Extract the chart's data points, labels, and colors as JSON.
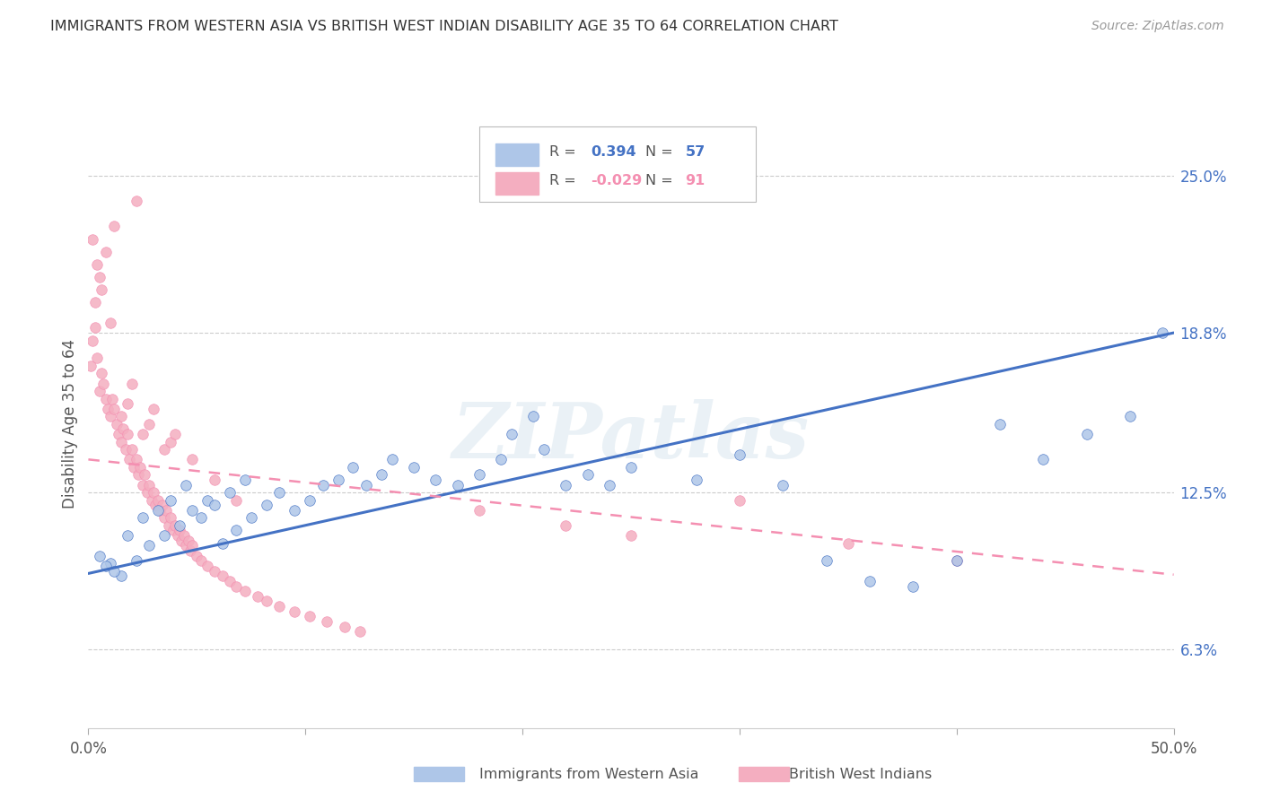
{
  "title": "IMMIGRANTS FROM WESTERN ASIA VS BRITISH WEST INDIAN DISABILITY AGE 35 TO 64 CORRELATION CHART",
  "source": "Source: ZipAtlas.com",
  "ylabel": "Disability Age 35 to 64",
  "xlim": [
    0.0,
    0.5
  ],
  "ylim": [
    0.032,
    0.272
  ],
  "yticks": [
    0.063,
    0.125,
    0.188,
    0.25
  ],
  "ytick_labels": [
    "6.3%",
    "12.5%",
    "18.8%",
    "25.0%"
  ],
  "xtick_positions": [
    0.0,
    0.1,
    0.2,
    0.3,
    0.4,
    0.5
  ],
  "xtick_labels_show": [
    "0.0%",
    "",
    "",
    "",
    "",
    "50.0%"
  ],
  "watermark": "ZIPatlas",
  "legend_val1": "0.394",
  "legend_count1": "57",
  "legend_val2": "-0.029",
  "legend_count2": "91",
  "color_blue": "#aec6e8",
  "color_pink": "#f4aec0",
  "line_blue": "#4472c4",
  "line_pink": "#f48fb1",
  "blue_line_x": [
    0.0,
    0.5
  ],
  "blue_line_y": [
    0.093,
    0.188
  ],
  "pink_line_x": [
    0.0,
    0.22
  ],
  "pink_line_y": [
    0.138,
    0.118
  ],
  "blue_pts_x": [
    0.01,
    0.015,
    0.022,
    0.028,
    0.035,
    0.042,
    0.048,
    0.055,
    0.062,
    0.068,
    0.075,
    0.082,
    0.088,
    0.095,
    0.102,
    0.108,
    0.115,
    0.122,
    0.128,
    0.135,
    0.14,
    0.15,
    0.16,
    0.17,
    0.18,
    0.19,
    0.195,
    0.205,
    0.21,
    0.22,
    0.23,
    0.24,
    0.25,
    0.28,
    0.3,
    0.32,
    0.34,
    0.36,
    0.38,
    0.4,
    0.42,
    0.44,
    0.46,
    0.48,
    0.495,
    0.005,
    0.008,
    0.012,
    0.018,
    0.025,
    0.032,
    0.038,
    0.045,
    0.052,
    0.058,
    0.065,
    0.072
  ],
  "blue_pts_y": [
    0.097,
    0.092,
    0.098,
    0.104,
    0.108,
    0.112,
    0.118,
    0.122,
    0.105,
    0.11,
    0.115,
    0.12,
    0.125,
    0.118,
    0.122,
    0.128,
    0.13,
    0.135,
    0.128,
    0.132,
    0.138,
    0.135,
    0.13,
    0.128,
    0.132,
    0.138,
    0.148,
    0.155,
    0.142,
    0.128,
    0.132,
    0.128,
    0.135,
    0.13,
    0.14,
    0.128,
    0.098,
    0.09,
    0.088,
    0.098,
    0.152,
    0.138,
    0.148,
    0.155,
    0.188,
    0.1,
    0.096,
    0.094,
    0.108,
    0.115,
    0.118,
    0.122,
    0.128,
    0.115,
    0.12,
    0.125,
    0.13
  ],
  "pink_pts_x": [
    0.001,
    0.002,
    0.003,
    0.004,
    0.005,
    0.006,
    0.007,
    0.008,
    0.009,
    0.01,
    0.011,
    0.012,
    0.013,
    0.014,
    0.015,
    0.016,
    0.017,
    0.018,
    0.019,
    0.02,
    0.021,
    0.022,
    0.023,
    0.024,
    0.025,
    0.026,
    0.027,
    0.028,
    0.029,
    0.03,
    0.031,
    0.032,
    0.033,
    0.034,
    0.035,
    0.036,
    0.037,
    0.038,
    0.039,
    0.04,
    0.041,
    0.042,
    0.043,
    0.044,
    0.045,
    0.046,
    0.047,
    0.048,
    0.05,
    0.052,
    0.055,
    0.058,
    0.062,
    0.065,
    0.068,
    0.072,
    0.078,
    0.082,
    0.088,
    0.095,
    0.102,
    0.11,
    0.118,
    0.125,
    0.015,
    0.025,
    0.035,
    0.022,
    0.012,
    0.008,
    0.005,
    0.003,
    0.018,
    0.028,
    0.038,
    0.048,
    0.058,
    0.068,
    0.18,
    0.22,
    0.25,
    0.3,
    0.35,
    0.4,
    0.002,
    0.004,
    0.006,
    0.01,
    0.02,
    0.03,
    0.04
  ],
  "pink_pts_y": [
    0.175,
    0.185,
    0.19,
    0.178,
    0.165,
    0.172,
    0.168,
    0.162,
    0.158,
    0.155,
    0.162,
    0.158,
    0.152,
    0.148,
    0.145,
    0.15,
    0.142,
    0.148,
    0.138,
    0.142,
    0.135,
    0.138,
    0.132,
    0.135,
    0.128,
    0.132,
    0.125,
    0.128,
    0.122,
    0.125,
    0.12,
    0.122,
    0.118,
    0.12,
    0.115,
    0.118,
    0.112,
    0.115,
    0.11,
    0.112,
    0.108,
    0.11,
    0.106,
    0.108,
    0.104,
    0.106,
    0.102,
    0.104,
    0.1,
    0.098,
    0.096,
    0.094,
    0.092,
    0.09,
    0.088,
    0.086,
    0.084,
    0.082,
    0.08,
    0.078,
    0.076,
    0.074,
    0.072,
    0.07,
    0.155,
    0.148,
    0.142,
    0.24,
    0.23,
    0.22,
    0.21,
    0.2,
    0.16,
    0.152,
    0.145,
    0.138,
    0.13,
    0.122,
    0.118,
    0.112,
    0.108,
    0.122,
    0.105,
    0.098,
    0.225,
    0.215,
    0.205,
    0.192,
    0.168,
    0.158,
    0.148
  ]
}
